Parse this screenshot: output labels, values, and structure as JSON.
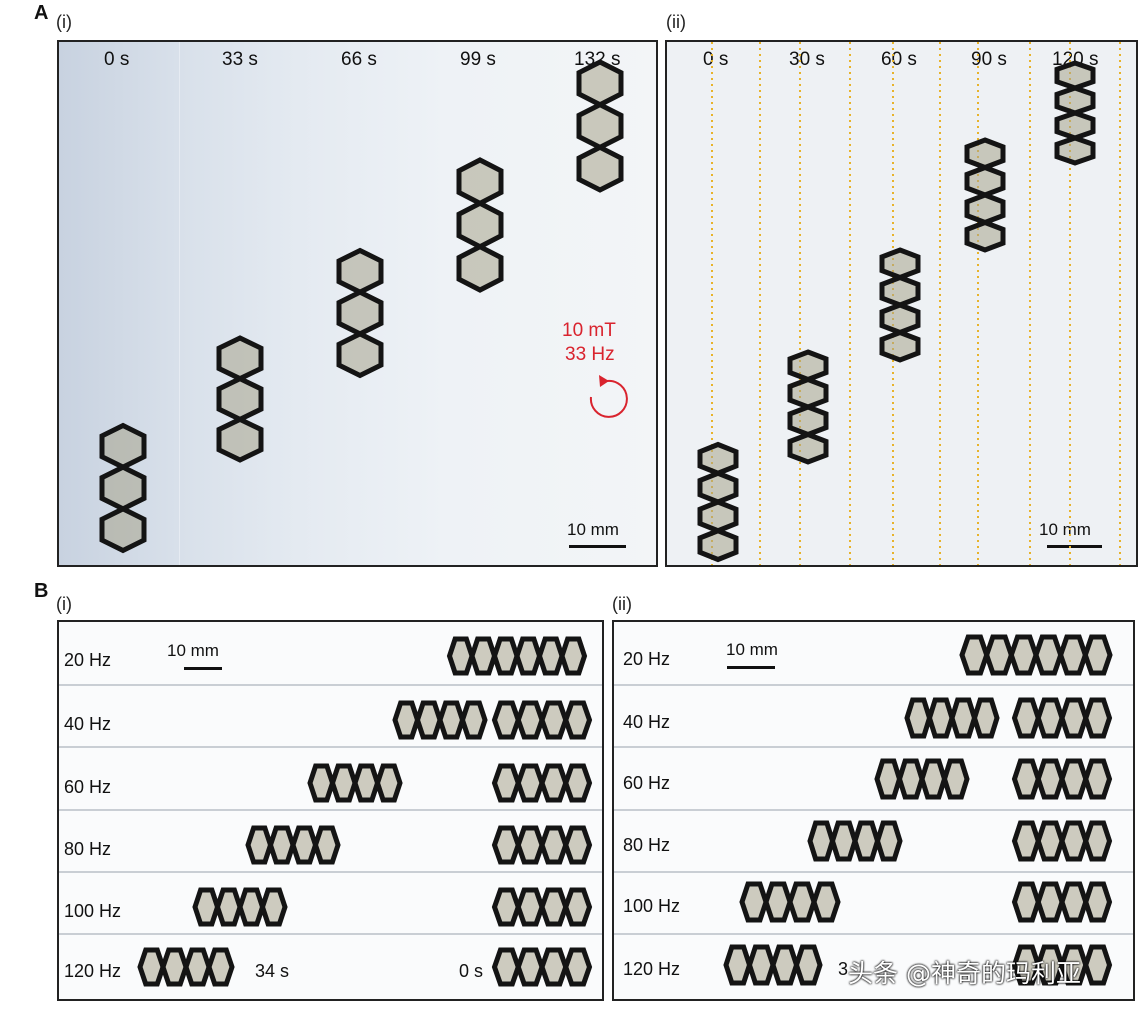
{
  "panel_a": {
    "label": "A",
    "i": {
      "label": "(i)",
      "times": [
        "0 s",
        "33 s",
        "66 s",
        "99 s",
        "132 s"
      ],
      "field_strength": "10 mT",
      "frequency": "33 Hz",
      "scale_bar": "10 mm",
      "field_color": "#d9232e"
    },
    "ii": {
      "label": "(ii)",
      "times": [
        "0 s",
        "30 s",
        "60 s",
        "90 s",
        "120 s"
      ],
      "scale_bar": "10 mm",
      "guide_color": "#e8b32a"
    }
  },
  "panel_b": {
    "label": "B",
    "i": {
      "label": "(i)",
      "rows": [
        "20 Hz",
        "40 Hz",
        "60 Hz",
        "80 Hz",
        "100 Hz",
        "120 Hz"
      ],
      "scale_bar": "10 mm",
      "end_time": "34 s",
      "start_time": "0 s"
    },
    "ii": {
      "label": "(ii)",
      "rows": [
        "20 Hz",
        "40 Hz",
        "60 Hz",
        "80 Hz",
        "100 Hz",
        "120 Hz"
      ],
      "scale_bar": "10 mm",
      "end_time": "3"
    }
  },
  "watermark": "头条 @神奇的玛利亚"
}
